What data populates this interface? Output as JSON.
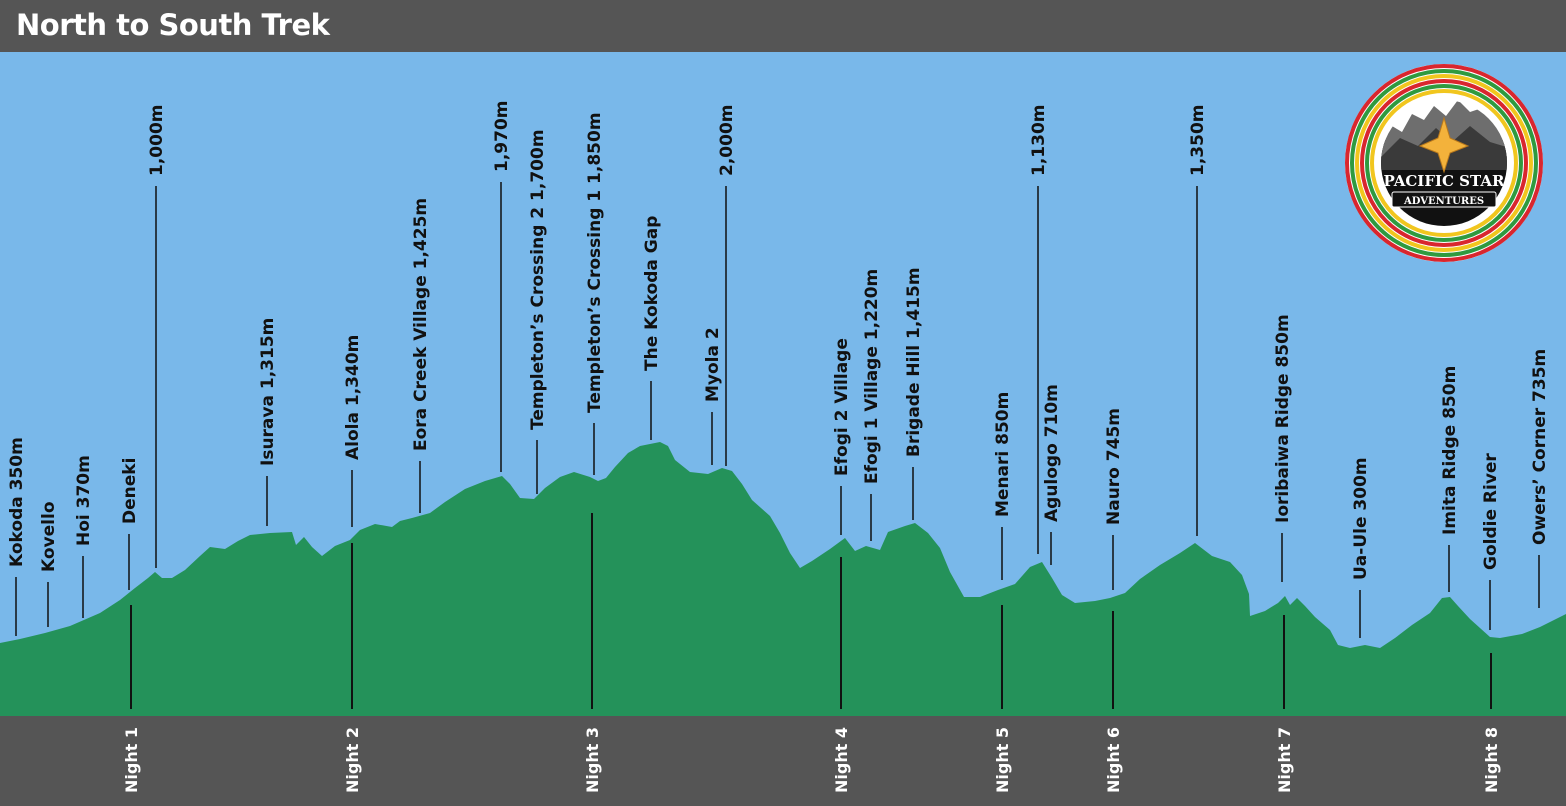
{
  "title": "North to South Trek",
  "colors": {
    "sky": "#79b8ea",
    "terrain": "#24925a",
    "header": "#555555",
    "footer": "#555555",
    "label": "#111111",
    "night_label": "#ffffff"
  },
  "waypoints": [
    {
      "label": "Kokoda 350m"
    },
    {
      "label": "Kovello"
    },
    {
      "label": "Hoi 370m"
    },
    {
      "label": "Deneki"
    },
    {
      "label": "1,000m"
    },
    {
      "label": "Isurava 1,315m"
    },
    {
      "label": "Alola 1,340m"
    },
    {
      "label": "Eora Creek Village 1,425m"
    },
    {
      "label": "1,970m"
    },
    {
      "label": "Templeton’s Crossing 2 1,700m"
    },
    {
      "label": "Templeton’s Crossing 1 1,850m"
    },
    {
      "label": "The Kokoda Gap"
    },
    {
      "label": "Myola 2"
    },
    {
      "label": "2,000m"
    },
    {
      "label": "Efogi 2 Village"
    },
    {
      "label": "Efogi 1 Village 1,220m"
    },
    {
      "label": "Brigade Hill 1,415m"
    },
    {
      "label": "Menari 850m"
    },
    {
      "label": "Agulogo 710m"
    },
    {
      "label": "1,130m"
    },
    {
      "label": "Nauro 745m"
    },
    {
      "label": "1,350m"
    },
    {
      "label": "Ioribaiwa Ridge 850m"
    },
    {
      "label": "Ua-Ule 300m"
    },
    {
      "label": "Imita Ridge 850m"
    },
    {
      "label": "Goldie River"
    },
    {
      "label": "Owers’ Corner 735m"
    }
  ],
  "nights": [
    {
      "label": "Night 1"
    },
    {
      "label": "Night 2"
    },
    {
      "label": "Night 3"
    },
    {
      "label": "Night 4"
    },
    {
      "label": "Night 5"
    },
    {
      "label": "Night 6"
    },
    {
      "label": "Night 7"
    },
    {
      "label": "Night 8"
    }
  ],
  "logo": {
    "name_line": "PACIFIC STAR",
    "sub_line": "ADVENTURES",
    "ring_colors": [
      "#d9262e",
      "#2f9a3f",
      "#f1c61e",
      "#d9262e",
      "#2f9a3f",
      "#f1c61e"
    ]
  }
}
